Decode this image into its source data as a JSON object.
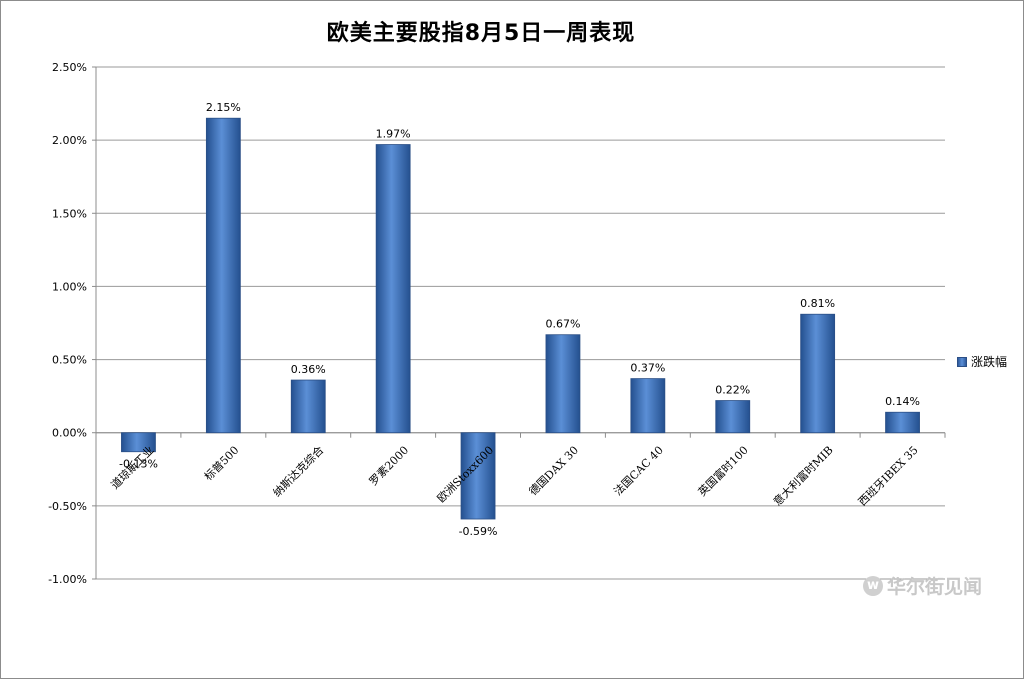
{
  "chart_data": {
    "type": "bar",
    "title": "欧美主要股指8月5日一周表现",
    "categories": [
      "道琼斯工业",
      "标普500",
      "纳斯达克综合",
      "罗素2000",
      "欧洲Stoxx600",
      "德国DAX 30",
      "法国CAC 40",
      "英国富时100",
      "意大利富时MIB",
      "西班牙IBEX 35"
    ],
    "series": [
      {
        "name": "涨跌幅",
        "values": [
          -0.13,
          2.15,
          0.36,
          1.97,
          -0.59,
          0.67,
          0.37,
          0.22,
          0.81,
          0.14
        ]
      }
    ],
    "value_labels": [
      "-0.13%",
      "2.15%",
      "0.36%",
      "1.97%",
      "-0.59%",
      "0.67%",
      "0.37%",
      "0.22%",
      "0.81%",
      "0.14%"
    ],
    "ylim": [
      -1.0,
      2.5
    ],
    "yticks": [
      2.5,
      2.0,
      1.5,
      1.0,
      0.5,
      0.0,
      -0.5,
      -1.0
    ],
    "ytick_labels": [
      "2.50%",
      "2.00%",
      "1.50%",
      "1.00%",
      "0.50%",
      "0.00%",
      "-0.50%",
      "-1.00%"
    ],
    "xlabel": "",
    "ylabel": "",
    "grid": true,
    "legend_position": "right",
    "bar_color": "#3a6bb5"
  },
  "legend": {
    "label": "涨跌幅"
  },
  "watermark": {
    "icon": "w",
    "text": "华尔街见闻"
  }
}
